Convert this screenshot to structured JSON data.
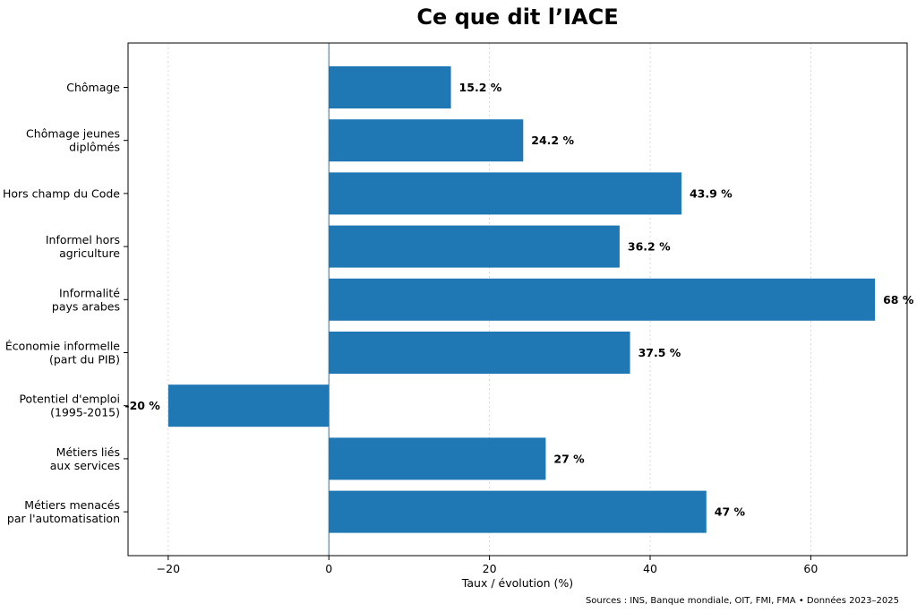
{
  "chart_data": {
    "type": "bar",
    "orientation": "horizontal",
    "title": "Ce que dit l’IACE",
    "xlabel": "Taux / évolution (%)",
    "ylabel": "",
    "xlim": [
      -25,
      72
    ],
    "xticks": [
      -20,
      0,
      20,
      40,
      60
    ],
    "xtick_labels": [
      "−20",
      "0",
      "20",
      "40",
      "60"
    ],
    "grid": "x-dotted",
    "bar_color": "#1f77b4",
    "categories": [
      [
        "Chômage"
      ],
      [
        "Chômage jeunes",
        "diplômés"
      ],
      [
        "Hors champ du Code"
      ],
      [
        "Informel hors",
        "agriculture"
      ],
      [
        "Informalité",
        "pays arabes"
      ],
      [
        "Économie informelle",
        "(part du PIB)"
      ],
      [
        "Potentiel d'emploi",
        "(1995-2015)"
      ],
      [
        "Métiers liés",
        "aux services"
      ],
      [
        "Métiers menacés",
        "par l'automatisation"
      ]
    ],
    "values": [
      15.2,
      24.2,
      43.9,
      36.2,
      68,
      37.5,
      -20,
      27,
      47
    ],
    "value_labels": [
      "15.2 %",
      "24.2 %",
      "43.9 %",
      "36.2 %",
      "68 %",
      "37.5 %",
      "-20 %",
      "27 %",
      "47 %"
    ]
  },
  "footer": {
    "source": "Sources : INS, Banque mondiale, OIT, FMI, FMA • Données 2023–2025"
  }
}
